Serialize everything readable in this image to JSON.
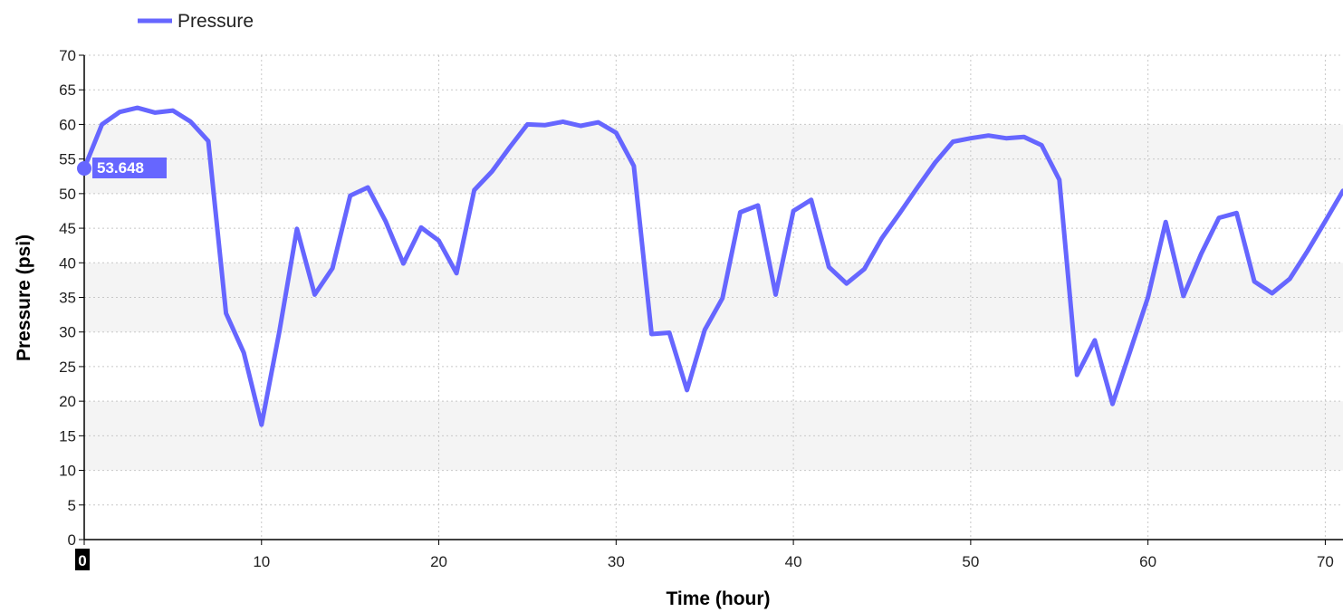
{
  "chart_data": {
    "type": "line",
    "title": "",
    "xlabel": "Time (hour)",
    "ylabel": "Pressure (psi)",
    "xlim": [
      0,
      71
    ],
    "ylim": [
      0,
      70
    ],
    "xticks": [
      0,
      10,
      20,
      30,
      40,
      50,
      60,
      70
    ],
    "yticks": [
      0,
      5,
      10,
      15,
      20,
      25,
      30,
      35,
      40,
      45,
      50,
      55,
      60,
      65,
      70
    ],
    "grid": true,
    "legend": "top-left",
    "series": [
      {
        "name": "Pressure",
        "color": "#6666ff",
        "x": [
          0,
          1,
          2,
          3,
          4,
          5,
          6,
          7,
          8,
          9,
          10,
          11,
          12,
          13,
          14,
          15,
          16,
          17,
          18,
          19,
          20,
          21,
          22,
          23,
          24,
          25,
          26,
          27,
          28,
          29,
          30,
          31,
          32,
          33,
          34,
          35,
          36,
          37,
          38,
          39,
          40,
          41,
          42,
          43,
          44,
          45,
          46,
          47,
          48,
          49,
          50,
          51,
          52,
          53,
          54,
          55,
          56,
          57,
          58,
          59,
          60,
          61,
          62,
          63,
          64,
          65,
          66,
          67,
          68,
          69,
          70,
          71
        ],
        "y": [
          53.648,
          60.0,
          61.8,
          62.4,
          61.7,
          62.0,
          60.4,
          57.6,
          32.7,
          27.0,
          16.6,
          30.0,
          44.9,
          35.4,
          39.2,
          49.7,
          50.9,
          46.0,
          39.9,
          45.1,
          43.2,
          38.5,
          50.5,
          53.2,
          56.7,
          60.0,
          59.9,
          60.4,
          59.8,
          60.3,
          58.8,
          54.0,
          29.7,
          29.9,
          21.6,
          30.3,
          34.9,
          47.3,
          48.3,
          35.4,
          47.5,
          49.1,
          39.4,
          37.0,
          39.1,
          43.6,
          47.2,
          50.9,
          54.5,
          57.5,
          58.0,
          58.4,
          58.0,
          58.2,
          57.0,
          52.0,
          23.8,
          28.8,
          19.6,
          27.3,
          35.0,
          45.9,
          35.2,
          41.3,
          46.5,
          47.2,
          37.3,
          35.6,
          37.7,
          41.7,
          46.0,
          50.4
        ]
      }
    ],
    "cursor": {
      "x": 0,
      "value": "53.648",
      "x_label": "0"
    }
  }
}
